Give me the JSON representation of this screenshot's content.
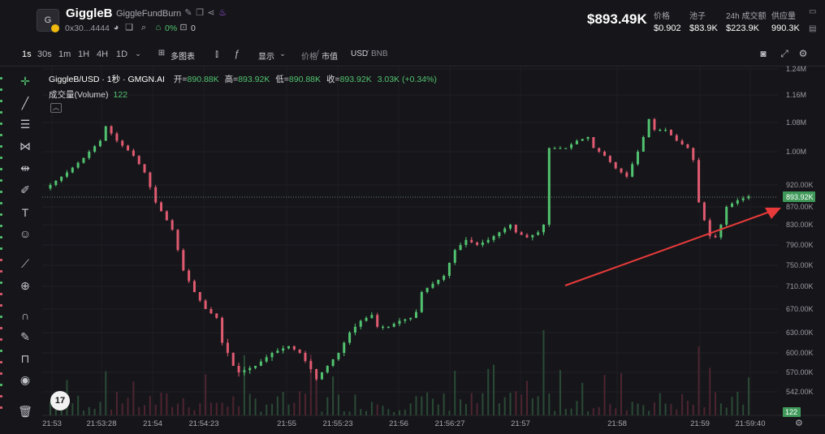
{
  "header": {
    "avatar_letter": "G",
    "token_name": "GiggleB",
    "token_fullname": "GiggleFundBurn",
    "contract": "0x30...4444",
    "percent": "0%",
    "lock_count": "0",
    "price_big": "$893.49K",
    "stats": [
      {
        "label": "价格",
        "value": "$0.902"
      },
      {
        "label": "池子",
        "value": "$83.9K"
      },
      {
        "label": "24h 成交额",
        "value": "$223.9K"
      },
      {
        "label": "供应量",
        "value": "990.3K"
      }
    ]
  },
  "toolbar": {
    "timeframes": [
      "1s",
      "30s",
      "1m",
      "1H",
      "4H",
      "1D"
    ],
    "active_timeframe": "1s",
    "multi_chart": "多图表",
    "display": "显示",
    "price_label": "价格",
    "mcap_label": "市值",
    "sep": "/",
    "usd": "USD",
    "bnb": "BNB"
  },
  "legend": {
    "symbol": "GiggleB/USD · 1秒 · GMGN.AI",
    "open_k": "开=",
    "open_v": "890.88K",
    "high_k": "高=",
    "high_v": "893.92K",
    "low_k": "低=",
    "low_v": "890.88K",
    "close_k": "收=",
    "close_v": "893.92K",
    "change": "3.03K (+0.34%)",
    "volume_label": "成交量(Volume)",
    "volume_value": "122"
  },
  "colors": {
    "up": "#51c26f",
    "down": "#e05a70",
    "bg": "#16161a",
    "arrow": "#e83a3a"
  },
  "chart_data": {
    "type": "candlestick",
    "y_axis_ticks": [
      "1.24M",
      "1.16M",
      "1.08M",
      "1.00M",
      "920.00K",
      "870.00K",
      "830.00K",
      "790.00K",
      "750.00K",
      "710.00K",
      "670.00K",
      "630.00K",
      "600.00K",
      "570.00K",
      "542.00K"
    ],
    "x_axis_ticks": [
      "21:53",
      "21:53:28",
      "21:54",
      "21:54:23",
      "21:55",
      "21:55:23",
      "21:56",
      "21:56:27",
      "21:57",
      "21:58",
      "21:59",
      "21:59:40"
    ],
    "last_price_label": "893.92K",
    "volume_last_label": "122",
    "close_path": [
      [
        0,
        920
      ],
      [
        3,
        950
      ],
      [
        6,
        985
      ],
      [
        9,
        1030
      ],
      [
        10,
        1070
      ],
      [
        12,
        1030
      ],
      [
        15,
        990
      ],
      [
        17,
        950
      ],
      [
        19,
        880
      ],
      [
        20,
        860
      ],
      [
        22,
        820
      ],
      [
        23,
        780
      ],
      [
        24,
        740
      ],
      [
        26,
        700
      ],
      [
        28,
        670
      ],
      [
        30,
        655
      ],
      [
        31,
        615
      ],
      [
        32,
        600
      ],
      [
        33,
        580
      ],
      [
        34,
        570
      ],
      [
        37,
        580
      ],
      [
        40,
        600
      ],
      [
        43,
        610
      ],
      [
        45,
        600
      ],
      [
        47,
        575
      ],
      [
        48,
        560
      ],
      [
        50,
        580
      ],
      [
        52,
        600
      ],
      [
        54,
        630
      ],
      [
        56,
        650
      ],
      [
        58,
        660
      ],
      [
        59,
        640
      ],
      [
        61,
        640
      ],
      [
        63,
        650
      ],
      [
        65,
        655
      ],
      [
        66,
        665
      ],
      [
        67,
        700
      ],
      [
        69,
        715
      ],
      [
        71,
        730
      ],
      [
        73,
        780
      ],
      [
        75,
        800
      ],
      [
        77,
        790
      ],
      [
        79,
        800
      ],
      [
        81,
        815
      ],
      [
        83,
        830
      ],
      [
        84,
        815
      ],
      [
        86,
        805
      ],
      [
        88,
        815
      ],
      [
        89,
        830
      ],
      [
        90,
        1010
      ],
      [
        93,
        1010
      ],
      [
        95,
        1030
      ],
      [
        97,
        1040
      ],
      [
        98,
        1010
      ],
      [
        100,
        990
      ],
      [
        102,
        960
      ],
      [
        104,
        940
      ],
      [
        106,
        1000
      ],
      [
        107,
        1040
      ],
      [
        108,
        1090
      ],
      [
        109,
        1060
      ],
      [
        111,
        1060
      ],
      [
        113,
        1030
      ],
      [
        115,
        1010
      ],
      [
        116,
        980
      ],
      [
        117,
        880
      ],
      [
        118,
        840
      ],
      [
        119,
        808
      ],
      [
        120,
        805
      ],
      [
        121,
        830
      ],
      [
        122,
        870
      ],
      [
        124,
        885
      ],
      [
        126,
        894
      ]
    ]
  },
  "tools": [
    "crosshair-icon",
    "trendline-icon",
    "fib-icon",
    "pattern-icon",
    "measure-icon",
    "brush-icon",
    "text-icon",
    "emoji-icon",
    "ruler-icon",
    "zoom-icon",
    "magnet-icon",
    "lock-draw-icon",
    "unlock-icon",
    "eye-icon",
    "trash-icon"
  ]
}
